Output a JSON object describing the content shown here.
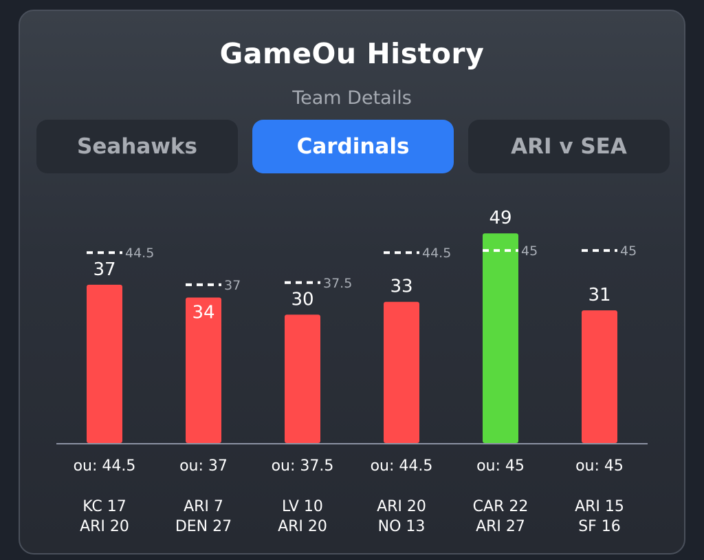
{
  "header": {
    "title": "GameOu History",
    "subtitle": "Team Details"
  },
  "tabs": [
    {
      "label": "Seahawks",
      "active": false
    },
    {
      "label": "Cardinals",
      "active": true
    },
    {
      "label": "ARI v SEA",
      "active": false
    }
  ],
  "colors": {
    "under": "#ff4b4b",
    "over": "#5ad93f",
    "line": "#ffffff",
    "axis": "#8c93a4"
  },
  "chart_data": {
    "type": "bar",
    "title": "GameOu History",
    "subtitle": "Team Details",
    "ylim": [
      0,
      55
    ],
    "categories": [
      "KC 17 ARI 20",
      "ARI 7 DEN 27",
      "LV 10 ARI 20",
      "ARI 20 NO 13",
      "CAR 22 ARI 27",
      "ARI 15 SF 16"
    ],
    "games": [
      {
        "total": 37,
        "ou": 44.5,
        "ou_label": "ou: 44.5",
        "line_label": "44.5",
        "team1": "KC 17",
        "team2": "ARI 20"
      },
      {
        "total": 34,
        "ou": 37,
        "ou_label": "ou: 37",
        "line_label": "37",
        "team1": "ARI 7",
        "team2": "DEN 27"
      },
      {
        "total": 30,
        "ou": 37.5,
        "ou_label": "ou: 37.5",
        "line_label": "37.5",
        "team1": "LV 10",
        "team2": "ARI 20"
      },
      {
        "total": 33,
        "ou": 44.5,
        "ou_label": "ou: 44.5",
        "line_label": "44.5",
        "team1": "ARI 20",
        "team2": "NO 13"
      },
      {
        "total": 49,
        "ou": 45,
        "ou_label": "ou: 45",
        "line_label": "45",
        "team1": "CAR 22",
        "team2": "ARI 27"
      },
      {
        "total": 31,
        "ou": 45,
        "ou_label": "ou: 45",
        "line_label": "45",
        "team1": "ARI 15",
        "team2": "SF 16"
      }
    ]
  }
}
